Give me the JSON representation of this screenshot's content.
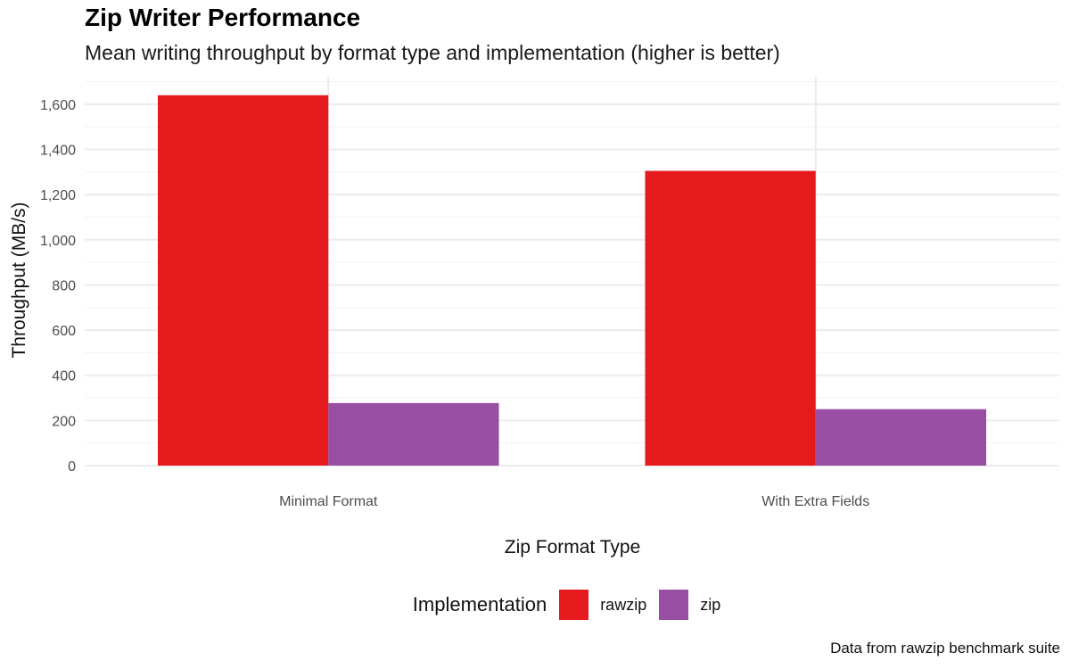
{
  "chart_data": {
    "type": "bar",
    "title": "Zip Writer Performance",
    "subtitle": "Mean writing throughput by format type and implementation (higher is better)",
    "caption": "Data from rawzip benchmark suite",
    "xlabel": "Zip Format Type",
    "ylabel": "Throughput (MB/s)",
    "categories": [
      "Minimal Format",
      "With Extra Fields"
    ],
    "series": [
      {
        "name": "rawzip",
        "color": "#E41A1C",
        "values": [
          1640,
          1305
        ]
      },
      {
        "name": "zip",
        "color": "#984EA3",
        "values": [
          277,
          250
        ]
      }
    ],
    "ylim": [
      0,
      1700
    ],
    "yticks": [
      0,
      200,
      400,
      600,
      800,
      1000,
      1200,
      1400,
      1600
    ],
    "ytick_labels": [
      "0",
      "200",
      "400",
      "600",
      "800",
      "1,000",
      "1,200",
      "1,400",
      "1,600"
    ],
    "legend_title": "Implementation",
    "legend_position": "bottom",
    "grid": true
  }
}
